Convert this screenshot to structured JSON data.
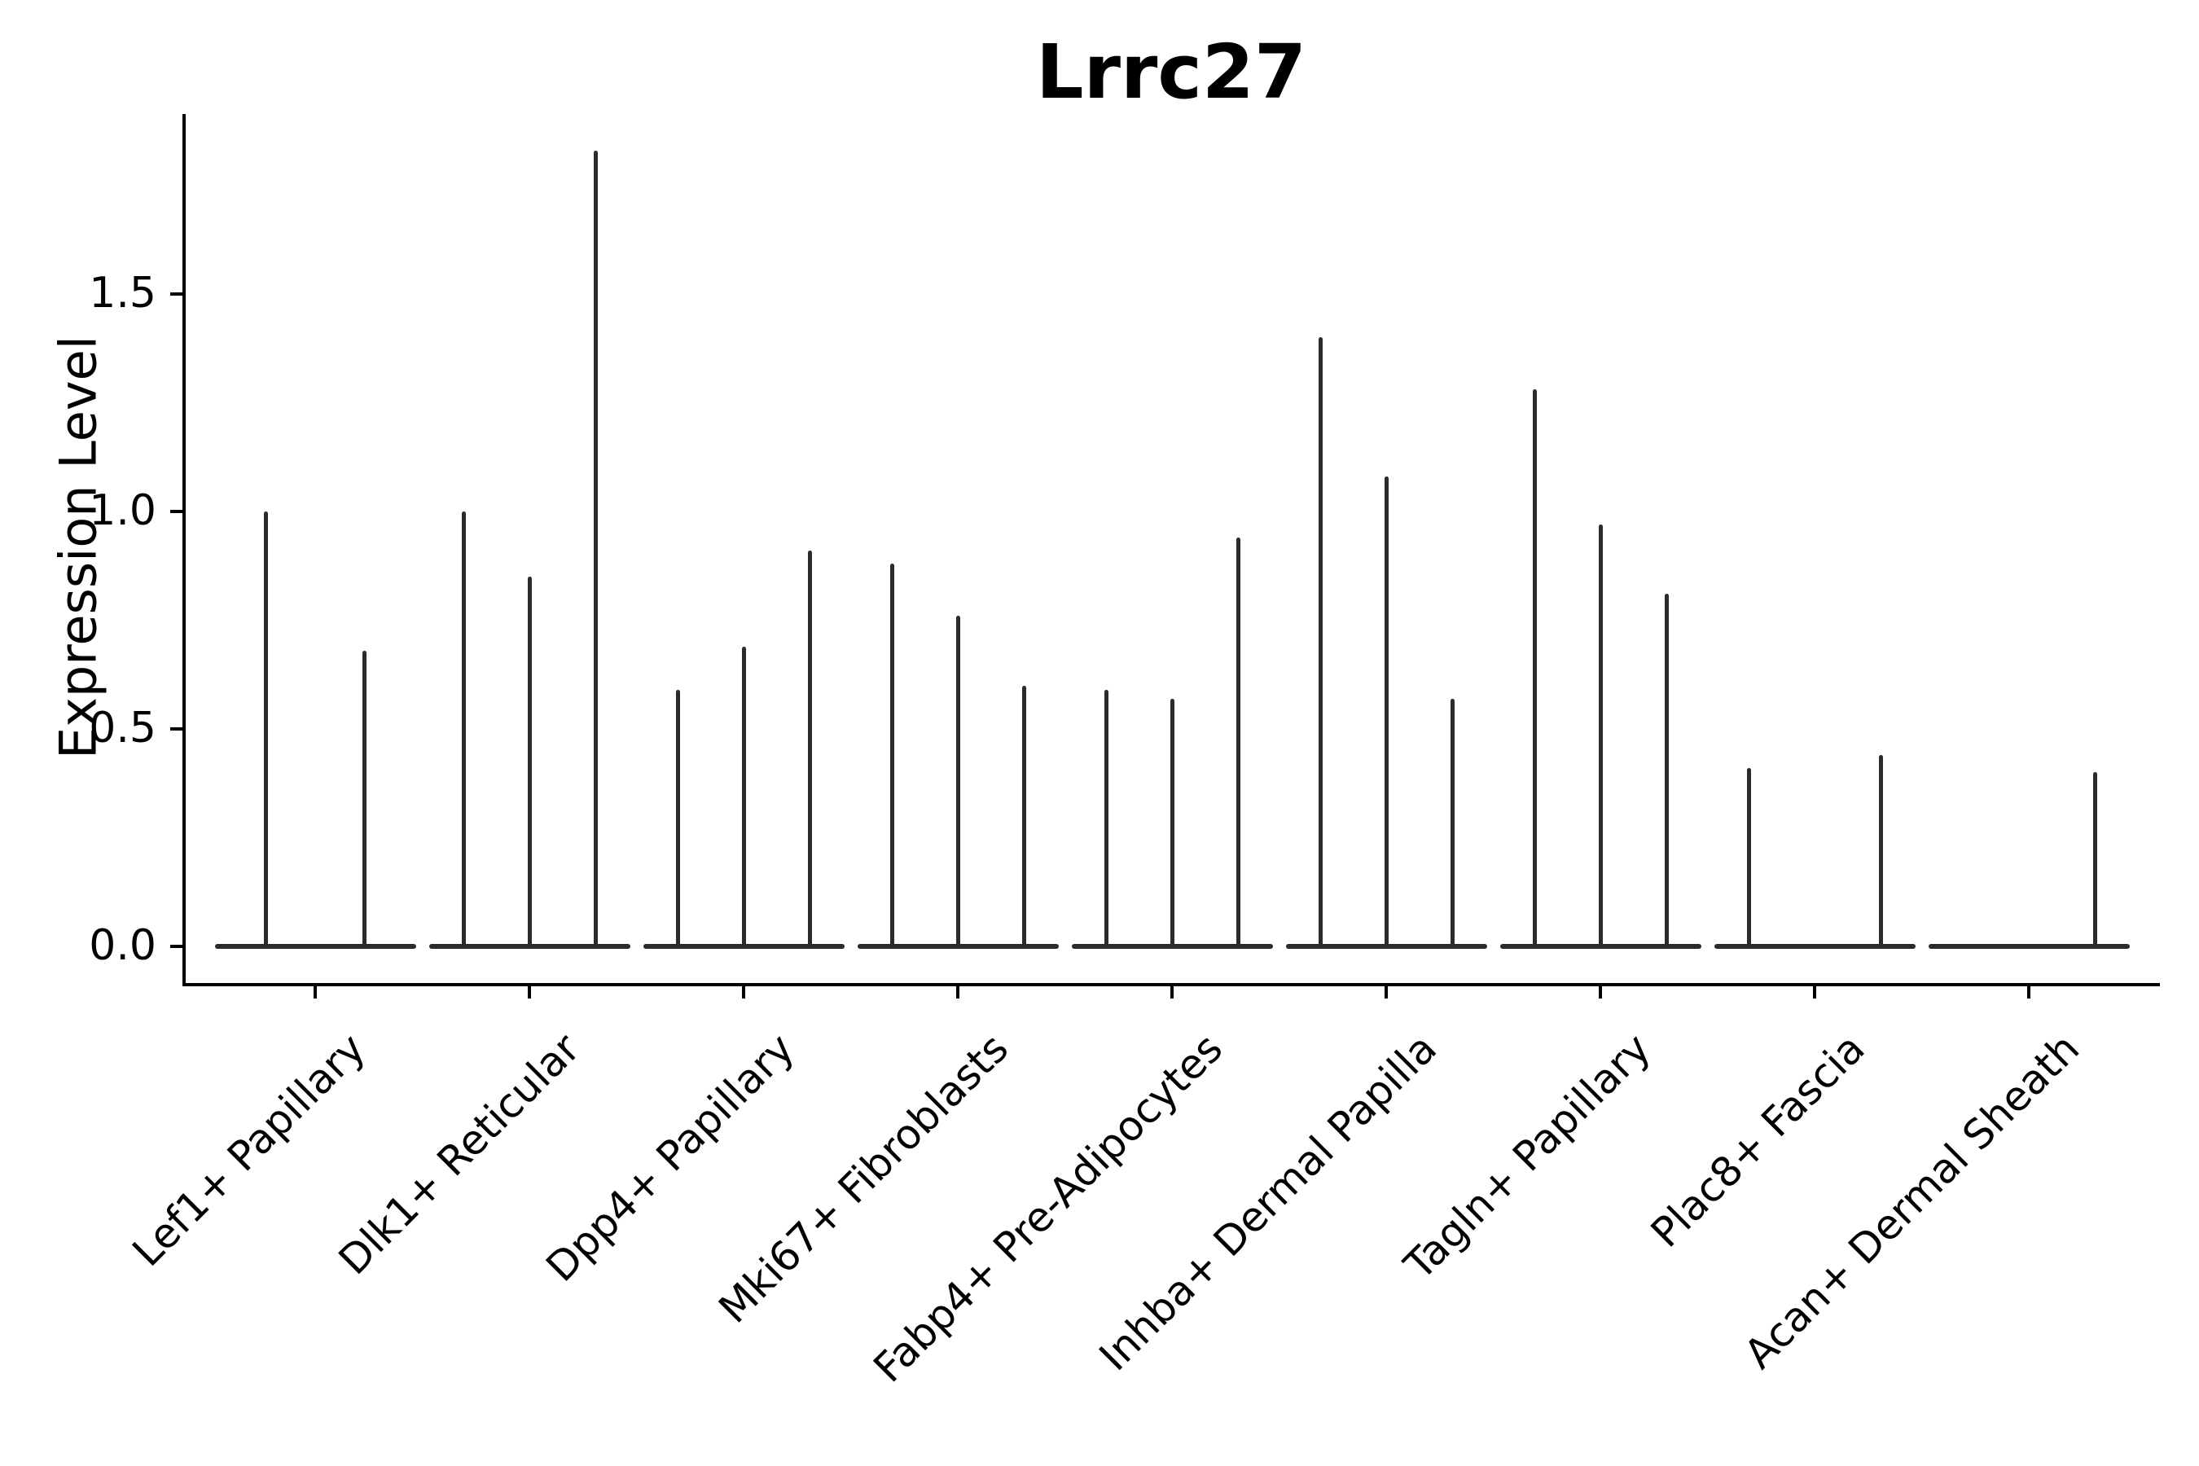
{
  "chart": {
    "title": "Lrrc27",
    "ylabel": "Expression Level"
  },
  "chart_data": {
    "type": "violin",
    "title": "Lrrc27",
    "xlabel": "",
    "ylabel": "Expression Level",
    "ylim": [
      0,
      1.92
    ],
    "grid": false,
    "legend_position": "none",
    "ytick_values": [
      0.0,
      0.5,
      1.0,
      1.5
    ],
    "ytick_labels": [
      "0.0",
      "0.5",
      "1.0",
      "1.5"
    ],
    "categories": [
      "Lef1+ Papillary",
      "Dlk1+ Reticular",
      "Dpp4+ Papillary",
      "Mki67+ Fibroblasts",
      "Fabp4+ Pre-Adipocytes",
      "Inhba+ Dermal Papilla",
      "Tagln+ Papillary",
      "Plac8+ Fascia",
      "Acan+ Dermal Sheath"
    ],
    "series_note": "needle-thin violins; each category holds 2-3 violins, value = max expression level reached by each violin spike (0 = flat baseline, no expression)",
    "violin_max_values": [
      [
        1.0,
        0.68
      ],
      [
        1.0,
        0.85,
        1.83
      ],
      [
        0.59,
        0.69,
        0.91
      ],
      [
        0.88,
        0.76,
        0.6
      ],
      [
        0.59,
        0.57,
        0.94
      ],
      [
        1.4,
        1.08,
        0.57
      ],
      [
        1.28,
        0.97,
        0.81
      ],
      [
        0.41,
        0.0,
        0.44
      ],
      [
        0.0,
        0.0,
        0.4
      ]
    ],
    "violin_color": "#2b2b2b",
    "axis_color": "#000000",
    "background_color": "#ffffff"
  }
}
